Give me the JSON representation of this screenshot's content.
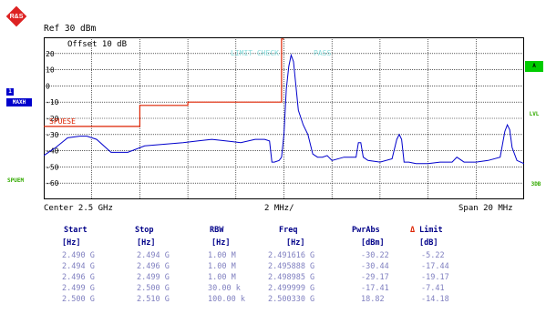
{
  "instrument": {
    "logo_text": "R&S"
  },
  "display": {
    "ref_label": "Ref  30 dBm",
    "offset_label": "Offset  10 dB",
    "limit_check_label": "LIMIT CHECK",
    "limit_check_status": "PASS",
    "limit_line_label": "SPUESE",
    "center_label": "Center 2.5 GHz",
    "div_label": "2 MHz/",
    "span_label": "Span 20 MHz"
  },
  "y_axis": {
    "ticks": [
      "20",
      "10",
      "0",
      "-10",
      "-20",
      "-30",
      "-40",
      "-50",
      "-60"
    ]
  },
  "left_panel": {
    "trace_number": "1",
    "trace_mode": "MAXH",
    "limit_line_name": "SPUEM"
  },
  "right_panel": {
    "marker_a": "A",
    "lvl": "LVL",
    "three_db": "3DB"
  },
  "colors": {
    "trace": "#0000cc",
    "limit": "#dd2200",
    "grid": "#000000",
    "badge_green": "#00cc00",
    "badge_blue": "#0000cc",
    "text_green": "#33aa00",
    "header_blue": "#000088",
    "value_blue": "#8080c0"
  },
  "table": {
    "headers": [
      "Start",
      "Stop",
      "RBW",
      "Freq",
      "PwrAbs",
      "Limit"
    ],
    "delta_symbol": "Δ",
    "units": [
      "[Hz]",
      "[Hz]",
      "[Hz]",
      "[Hz]",
      "[dBm]",
      "[dB]"
    ],
    "rows": [
      [
        "2.490 G",
        "2.494 G",
        "1.00 M",
        "2.491616 G",
        "-30.22",
        "-5.22"
      ],
      [
        "2.494 G",
        "2.496 G",
        "1.00 M",
        "2.495888 G",
        "-30.44",
        "-17.44"
      ],
      [
        "2.496 G",
        "2.499 G",
        "1.00 M",
        "2.498985 G",
        "-29.17",
        "-19.17"
      ],
      [
        "2.499 G",
        "2.500 G",
        "30.00 k",
        "2.499999 G",
        "-17.41",
        "-7.41"
      ],
      [
        "2.500 G",
        "2.510 G",
        "100.00 k",
        "2.500330 G",
        "18.82",
        "-14.18"
      ]
    ]
  },
  "chart_data": {
    "type": "line",
    "x_unit": "GHz",
    "y_unit": "dBm",
    "xlim": [
      2.49,
      2.51
    ],
    "ylim": [
      -70,
      30
    ],
    "series": [
      {
        "name": "trace",
        "x": [
          2.49,
          2.4905,
          2.491,
          2.4915,
          2.4918,
          2.4922,
          2.4928,
          2.4935,
          2.4942,
          2.495,
          2.4958,
          2.4964,
          2.497,
          2.4976,
          2.4982,
          2.4988,
          2.4992,
          2.4994,
          2.4995,
          2.4996,
          2.4998,
          2.4999,
          2.5,
          2.5001,
          2.5002,
          2.5003,
          2.5004,
          2.5006,
          2.5008,
          2.501,
          2.5012,
          2.5014,
          2.5016,
          2.5018,
          2.502,
          2.5025,
          2.503,
          2.5031,
          2.5032,
          2.5033,
          2.5035,
          2.504,
          2.5045,
          2.5047,
          2.5048,
          2.5049,
          2.505,
          2.5052,
          2.5055,
          2.506,
          2.5065,
          2.507,
          2.5072,
          2.5075,
          2.508,
          2.5085,
          2.509,
          2.5092,
          2.5093,
          2.5094,
          2.5095,
          2.5097,
          2.51
        ],
        "y": [
          -43,
          -38,
          -32,
          -31,
          -31,
          -33,
          -41,
          -41,
          -37,
          -36,
          -35,
          -34,
          -33,
          -34,
          -35,
          -33,
          -33,
          -34,
          -47,
          -47,
          -46,
          -44,
          -30,
          -2,
          12,
          19,
          15,
          -15,
          -24,
          -30,
          -42,
          -44,
          -44,
          -43,
          -46,
          -44,
          -44,
          -35,
          -35,
          -44,
          -46,
          -47,
          -45,
          -33,
          -30,
          -33,
          -47,
          -47,
          -48,
          -48,
          -47,
          -47,
          -44,
          -47,
          -47,
          -46,
          -44,
          -28,
          -24,
          -27,
          -38,
          -46,
          -48
        ]
      }
    ],
    "limit_line": {
      "x": [
        2.49,
        2.494,
        2.494,
        2.496,
        2.496,
        2.4999,
        2.4999,
        2.5,
        2.5
      ],
      "y": [
        -25,
        -25,
        -12,
        -12,
        -10,
        -10,
        29,
        29,
        29
      ]
    }
  }
}
